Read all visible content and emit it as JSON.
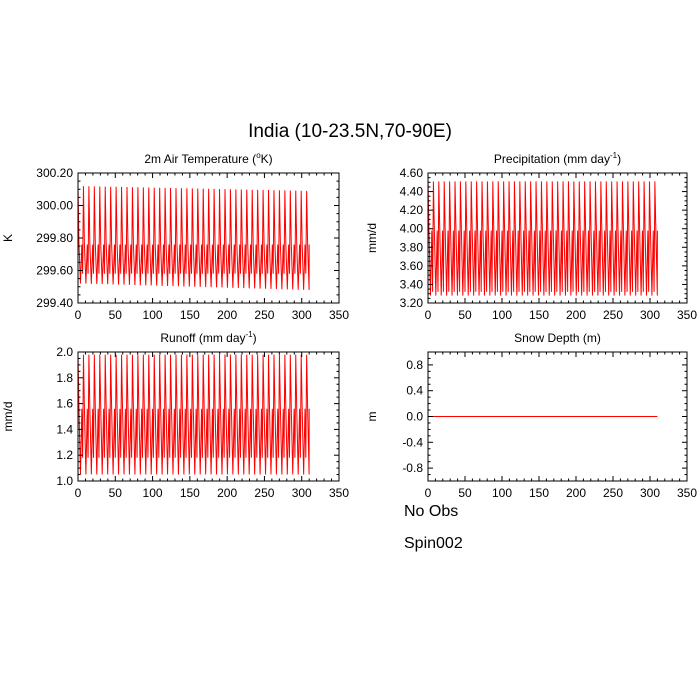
{
  "figure_title": "India (10-23.5N,70-90E)",
  "colors": {
    "no_obs": "#7777ff",
    "spin002": "#ff0000",
    "axis": "#000000"
  },
  "legend": [
    {
      "label": "No Obs",
      "style": "dashed",
      "color": "#7777ff"
    },
    {
      "label": "Spin002",
      "style": "solid",
      "color": "#ff0000"
    }
  ],
  "chart_data": [
    {
      "type": "line",
      "title": "2m Air Temperature (",
      "title_sup": "o",
      "title_after": "K)",
      "ylabel": "K",
      "xlim": [
        0,
        350
      ],
      "ylim": [
        299.4,
        300.2
      ],
      "xticks": [
        0,
        50,
        100,
        150,
        200,
        250,
        300,
        350
      ],
      "yticks": [
        "299.40",
        "299.60",
        "299.80",
        "300.00",
        "300.20"
      ],
      "ytick_values": [
        299.4,
        299.6,
        299.8,
        300.0,
        300.2
      ],
      "series": [
        {
          "name": "Spin002",
          "style": "oscillation",
          "period": 7.3,
          "x_end": 310,
          "peak_start": 300.12,
          "peak_end": 300.09,
          "trough_start": 299.52,
          "trough_end": 299.48,
          "mid_high": 299.76,
          "mid_low": 299.58,
          "color": "#ff0000"
        }
      ]
    },
    {
      "type": "line",
      "title": "Precipitation (mm day",
      "title_sup": "-1",
      "title_after": ")",
      "ylabel": "mm/d",
      "xlim": [
        0,
        350
      ],
      "ylim": [
        3.2,
        4.6
      ],
      "xticks": [
        0,
        50,
        100,
        150,
        200,
        250,
        300,
        350
      ],
      "yticks": [
        "3.20",
        "3.40",
        "3.60",
        "3.80",
        "4.00",
        "4.20",
        "4.40",
        "4.60"
      ],
      "ytick_values": [
        3.2,
        3.4,
        3.6,
        3.8,
        4.0,
        4.2,
        4.4,
        4.6
      ],
      "series": [
        {
          "name": "Spin002",
          "style": "oscillation",
          "period": 7.3,
          "x_end": 310,
          "peak_start": 4.51,
          "peak_end": 4.51,
          "trough_start": 3.28,
          "trough_end": 3.28,
          "mid_high": 3.98,
          "mid_low": 3.32,
          "color": "#ff0000"
        }
      ]
    },
    {
      "type": "line",
      "title": "Runoff (mm day",
      "title_sup": "-1",
      "title_after": ")",
      "ylabel": "mm/d",
      "xlim": [
        0,
        350
      ],
      "ylim": [
        1.0,
        2.0
      ],
      "xticks": [
        0,
        50,
        100,
        150,
        200,
        250,
        300,
        350
      ],
      "yticks": [
        "1.0",
        "1.2",
        "1.4",
        "1.6",
        "1.8",
        "2.0"
      ],
      "ytick_values": [
        1.0,
        1.2,
        1.4,
        1.6,
        1.8,
        2.0
      ],
      "series": [
        {
          "name": "Spin002",
          "style": "oscillation",
          "period": 7.3,
          "x_end": 310,
          "peak_start": 1.98,
          "peak_end": 1.98,
          "trough_start": 1.05,
          "trough_end": 1.05,
          "mid_high": 1.56,
          "mid_low": 1.18,
          "color": "#ff0000"
        }
      ]
    },
    {
      "type": "line",
      "title": "Snow Depth (m)",
      "title_sup": "",
      "title_after": "",
      "ylabel": "m",
      "xlim": [
        0,
        350
      ],
      "ylim": [
        -1.0,
        1.0
      ],
      "xticks": [
        0,
        50,
        100,
        150,
        200,
        250,
        300,
        350
      ],
      "yticks": [
        "-0.8",
        "-0.4",
        "0.0",
        "0.4",
        "0.8"
      ],
      "ytick_values": [
        -0.8,
        -0.4,
        0.0,
        0.4,
        0.8
      ],
      "series": [
        {
          "name": "Spin002",
          "style": "constant",
          "value": 0.0,
          "x_start": 0,
          "x_end": 310,
          "color": "#ff0000"
        }
      ]
    }
  ]
}
